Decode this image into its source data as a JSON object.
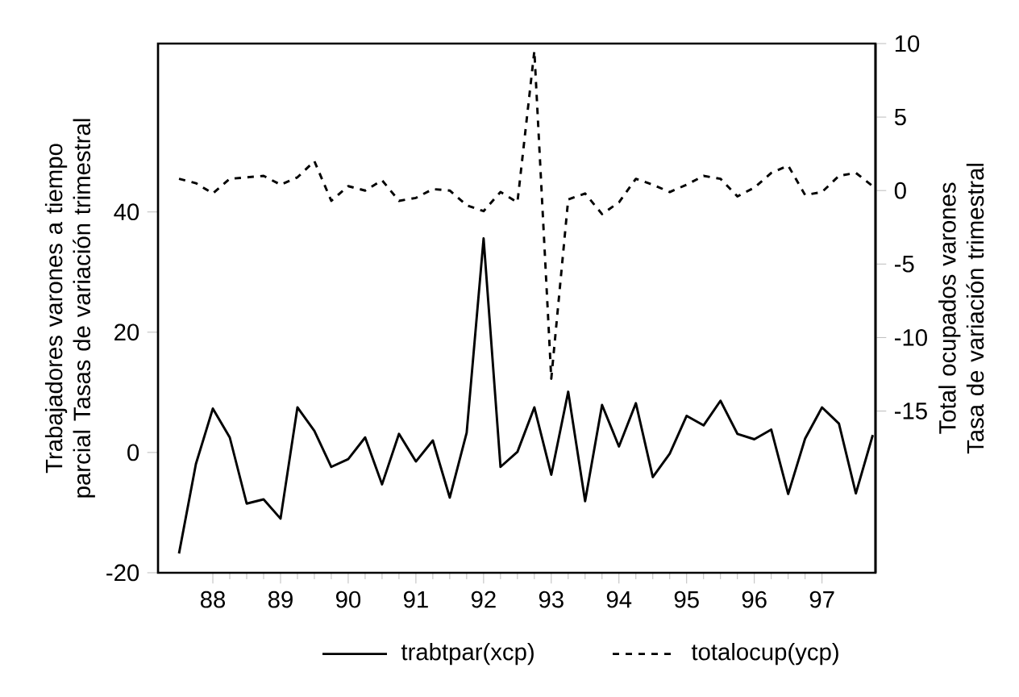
{
  "chart_data": {
    "type": "line",
    "x": [
      1987.5,
      1987.75,
      1988,
      1988.25,
      1988.5,
      1988.75,
      1989,
      1989.25,
      1989.5,
      1989.75,
      1990,
      1990.25,
      1990.5,
      1990.75,
      1991,
      1991.25,
      1991.5,
      1991.75,
      1992,
      1992.25,
      1992.5,
      1992.75,
      1993,
      1993.25,
      1993.5,
      1993.75,
      1994,
      1994.25,
      1994.5,
      1994.75,
      1995,
      1995.25,
      1995.5,
      1995.75,
      1996,
      1996.25,
      1996.5,
      1996.75,
      1997,
      1997.25,
      1997.5,
      1997.75
    ],
    "series": [
      {
        "name": "trabtpar(xcp)",
        "color": "#000000",
        "line_style": "solid",
        "values": [
          -16.8,
          -1.9,
          7.3,
          2.5,
          -8.5,
          -7.8,
          -11.0,
          7.5,
          3.6,
          -2.4,
          -1.1,
          2.5,
          -5.3,
          3.1,
          -1.5,
          2.0,
          -7.5,
          3.3,
          35.6,
          -2.4,
          0.1,
          7.5,
          -3.7,
          10.1,
          -8.1,
          7.9,
          1.0,
          8.2,
          -4.1,
          -0.2,
          6.1,
          4.5,
          8.6,
          3.1,
          2.2,
          3.8,
          -6.9,
          2.3,
          7.5,
          4.8,
          -6.8,
          2.9
        ]
      },
      {
        "name": "totalocup(ycp)",
        "color": "#000000",
        "line_style": "dashed",
        "axis": "y2",
        "values": [
          0.8,
          0.5,
          -0.2,
          0.8,
          0.9,
          1.0,
          0.4,
          0.9,
          2.0,
          -0.7,
          0.3,
          0.0,
          0.7,
          -0.7,
          -0.5,
          0.1,
          0.0,
          -1.0,
          -1.4,
          -0.1,
          -0.8,
          9.5,
          -12.8,
          -0.6,
          -0.2,
          -1.6,
          -0.8,
          0.8,
          0.4,
          -0.1,
          0.4,
          1.0,
          0.8,
          -0.4,
          0.2,
          1.2,
          1.7,
          -0.3,
          -0.1,
          1.0,
          1.2,
          0.3
        ]
      }
    ],
    "ylabel": "Trabajadores varones a tiempo parcial Tasas de variación trimestral",
    "y2label": "Total ocupados varones Tasa de variación trimestral",
    "xlim": [
      1987.19,
      1997.79
    ],
    "xticks": [
      {
        "value": 1988,
        "label": "88"
      },
      {
        "value": 1989,
        "label": "89"
      },
      {
        "value": 1990,
        "label": "90"
      },
      {
        "value": 1991,
        "label": "91"
      },
      {
        "value": 1992,
        "label": "92"
      },
      {
        "value": 1993,
        "label": "93"
      },
      {
        "value": 1994,
        "label": "94"
      },
      {
        "value": 1995,
        "label": "95"
      },
      {
        "value": 1996,
        "label": "96"
      },
      {
        "value": 1997,
        "label": "97"
      }
    ],
    "ylim": [
      -20,
      68
    ],
    "yticks": [
      -20,
      0,
      20,
      40
    ],
    "y2lim": [
      -26,
      10
    ],
    "y2ticks": [
      -15,
      -10,
      -5,
      0,
      5,
      10
    ],
    "grid": false,
    "legend": "bottom",
    "marker": "none"
  }
}
